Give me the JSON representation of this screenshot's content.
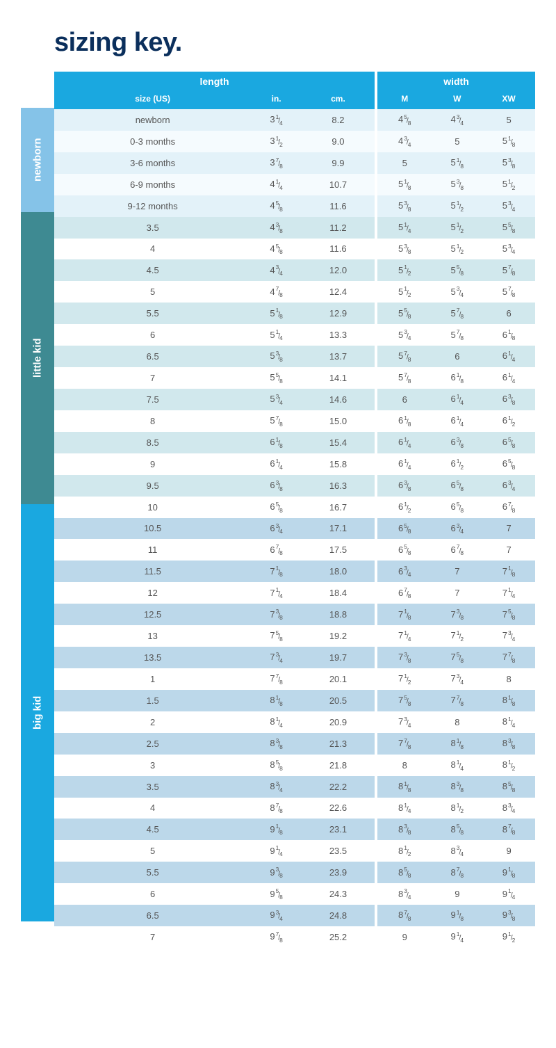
{
  "title": "sizing key.",
  "colors": {
    "title": "#0b2f5c",
    "header_bg": "#1aa8e0",
    "header_text": "#ffffff",
    "sections": {
      "newborn": {
        "label_bg": "#85c3e8",
        "row_even": "#f5fbfe",
        "row_odd": "#e3f2f9"
      },
      "little kid": {
        "label_bg": "#3e8a92",
        "row_even": "#ffffff",
        "row_odd": "#d1e8ed"
      },
      "big kid": {
        "label_bg": "#1aa8e0",
        "row_even": "#ffffff",
        "row_odd": "#bcd8ea"
      }
    }
  },
  "header": {
    "groups": [
      "length",
      "width"
    ],
    "columns": [
      "size (US)",
      "in.",
      "cm.",
      "M",
      "W",
      "XW"
    ]
  },
  "sections": [
    {
      "key": "newborn",
      "label": "newborn",
      "rows": [
        {
          "size": "newborn",
          "in": "3 1/4",
          "cm": "8.2",
          "m": "4 5/8",
          "w": "4 3/4",
          "xw": "5"
        },
        {
          "size": "0-3 months",
          "in": "3 1/2",
          "cm": "9.0",
          "m": "4 3/4",
          "w": "5",
          "xw": "5 1/8"
        },
        {
          "size": "3-6 months",
          "in": "3 7/8",
          "cm": "9.9",
          "m": "5",
          "w": "5 1/8",
          "xw": "5 3/8"
        },
        {
          "size": "6-9 months",
          "in": "4 1/4",
          "cm": "10.7",
          "m": "5 1/8",
          "w": "5 3/8",
          "xw": "5 1/2"
        },
        {
          "size": "9-12 months",
          "in": "4 5/8",
          "cm": "11.6",
          "m": "5 3/8",
          "w": "5 1/2",
          "xw": "5 3/4"
        }
      ]
    },
    {
      "key": "littlekid",
      "label": "little kid",
      "rows": [
        {
          "size": "3.5",
          "in": "4 3/8",
          "cm": "11.2",
          "m": "5 1/4",
          "w": "5 1/2",
          "xw": "5 5/8"
        },
        {
          "size": "4",
          "in": "4 5/8",
          "cm": "11.6",
          "m": "5 3/8",
          "w": "5 1/2",
          "xw": "5 3/4"
        },
        {
          "size": "4.5",
          "in": "4 3/4",
          "cm": "12.0",
          "m": "5 1/2",
          "w": "5 5/8",
          "xw": "5 7/8"
        },
        {
          "size": "5",
          "in": "4 7/8",
          "cm": "12.4",
          "m": "5 1/2",
          "w": "5 3/4",
          "xw": "5 7/8"
        },
        {
          "size": "5.5",
          "in": "5 1/8",
          "cm": "12.9",
          "m": "5 5/8",
          "w": "5 7/8",
          "xw": "6"
        },
        {
          "size": "6",
          "in": "5 1/4",
          "cm": "13.3",
          "m": "5 3/4",
          "w": "5 7/8",
          "xw": "6 1/8"
        },
        {
          "size": "6.5",
          "in": "5 3/8",
          "cm": "13.7",
          "m": "5 7/8",
          "w": "6",
          "xw": "6 1/4"
        },
        {
          "size": "7",
          "in": "5 5/8",
          "cm": "14.1",
          "m": "5 7/8",
          "w": "6 1/8",
          "xw": "6 1/4"
        },
        {
          "size": "7.5",
          "in": "5 3/4",
          "cm": "14.6",
          "m": "6",
          "w": "6 1/4",
          "xw": "6 3/8"
        },
        {
          "size": "8",
          "in": "5 7/8",
          "cm": "15.0",
          "m": "6 1/8",
          "w": "6 1/4",
          "xw": "6 1/2"
        },
        {
          "size": "8.5",
          "in": "6 1/8",
          "cm": "15.4",
          "m": "6 1/4",
          "w": "6 3/8",
          "xw": "6 5/8"
        },
        {
          "size": "9",
          "in": "6 1/4",
          "cm": "15.8",
          "m": "6 1/4",
          "w": "6 1/2",
          "xw": "6 5/8"
        },
        {
          "size": "9.5",
          "in": "6 3/8",
          "cm": "16.3",
          "m": "6 3/8",
          "w": "6 5/8",
          "xw": "6 3/4"
        },
        {
          "size": "10",
          "in": "6 5/8",
          "cm": "16.7",
          "m": "6 1/2",
          "w": "6 5/8",
          "xw": "6 7/8"
        }
      ]
    },
    {
      "key": "bigkid",
      "label": "big kid",
      "rows": [
        {
          "size": "10.5",
          "in": "6 3/4",
          "cm": "17.1",
          "m": "6 5/8",
          "w": "6 3/4",
          "xw": "7"
        },
        {
          "size": "11",
          "in": "6 7/8",
          "cm": "17.5",
          "m": "6 5/8",
          "w": "6 7/8",
          "xw": "7"
        },
        {
          "size": "11.5",
          "in": "7 1/8",
          "cm": "18.0",
          "m": "6 3/4",
          "w": "7",
          "xw": "7 1/8"
        },
        {
          "size": "12",
          "in": "7 1/4",
          "cm": "18.4",
          "m": "6 7/8",
          "w": "7",
          "xw": "7 1/4"
        },
        {
          "size": "12.5",
          "in": "7 3/8",
          "cm": "18.8",
          "m": "7 1/8",
          "w": "7 3/8",
          "xw": "7 5/8"
        },
        {
          "size": "13",
          "in": "7 5/8",
          "cm": "19.2",
          "m": "7 1/4",
          "w": "7 1/2",
          "xw": "7 3/4"
        },
        {
          "size": "13.5",
          "in": "7 3/4",
          "cm": "19.7",
          "m": "7 3/8",
          "w": "7 5/8",
          "xw": "7 7/8"
        },
        {
          "size": "1",
          "in": "7 7/8",
          "cm": "20.1",
          "m": "7 1/2",
          "w": "7 3/4",
          "xw": "8"
        },
        {
          "size": "1.5",
          "in": "8 1/8",
          "cm": "20.5",
          "m": "7 5/8",
          "w": "7 7/8",
          "xw": "8 1/8"
        },
        {
          "size": "2",
          "in": "8 1/4",
          "cm": "20.9",
          "m": "7 3/4",
          "w": "8",
          "xw": "8 1/4"
        },
        {
          "size": "2.5",
          "in": "8 3/8",
          "cm": "21.3",
          "m": "7 7/8",
          "w": "8 1/8",
          "xw": "8 3/8"
        },
        {
          "size": "3",
          "in": "8 5/8",
          "cm": "21.8",
          "m": "8",
          "w": "8 1/4",
          "xw": "8 1/2"
        },
        {
          "size": "3.5",
          "in": "8 3/4",
          "cm": "22.2",
          "m": "8 1/8",
          "w": "8 3/8",
          "xw": "8 5/8"
        },
        {
          "size": "4",
          "in": "8 7/8",
          "cm": "22.6",
          "m": "8 1/4",
          "w": "8 1/2",
          "xw": "8 3/4"
        },
        {
          "size": "4.5",
          "in": "9 1/8",
          "cm": "23.1",
          "m": "8 3/8",
          "w": "8 5/8",
          "xw": "8 7/8"
        },
        {
          "size": "5",
          "in": "9 1/4",
          "cm": "23.5",
          "m": "8 1/2",
          "w": "8 3/4",
          "xw": "9"
        },
        {
          "size": "5.5",
          "in": "9 3/8",
          "cm": "23.9",
          "m": "8 5/8",
          "w": "8 7/8",
          "xw": "9 1/8"
        },
        {
          "size": "6",
          "in": "9 5/8",
          "cm": "24.3",
          "m": "8 3/4",
          "w": "9",
          "xw": "9 1/4"
        },
        {
          "size": "6.5",
          "in": "9 3/4",
          "cm": "24.8",
          "m": "8 7/8",
          "w": "9 1/8",
          "xw": "9 3/8"
        },
        {
          "size": "7",
          "in": "9 7/8",
          "cm": "25.2",
          "m": "9",
          "w": "9 1/4",
          "xw": "9 1/2"
        }
      ]
    }
  ]
}
